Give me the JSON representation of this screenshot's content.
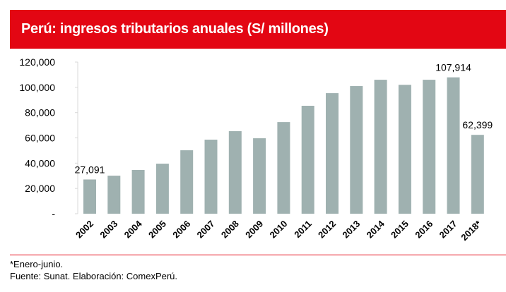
{
  "header": {
    "title": "Perú: ingresos tributarios anuales (S/ millones)"
  },
  "colors": {
    "header": "#e30613",
    "bar": "#9fb1b0"
  },
  "chart_data": {
    "type": "bar",
    "title": "Perú: ingresos tributarios anuales (S/ millones)",
    "categories": [
      "2002",
      "2003",
      "2004",
      "2005",
      "2006",
      "2007",
      "2008",
      "2009",
      "2010",
      "2011",
      "2012",
      "2013",
      "2014",
      "2015",
      "2016",
      "2017",
      "2018*"
    ],
    "values": [
      27091,
      30100,
      34600,
      39600,
      50200,
      58600,
      65300,
      59700,
      72500,
      85400,
      95400,
      101000,
      106000,
      102000,
      106000,
      107914,
      62399
    ],
    "data_labels": {
      "0": "27,091",
      "15": "107,914",
      "16": "62,399"
    },
    "yticks": [
      "-",
      "20,000",
      "40,000",
      "60,000",
      "80,000",
      "100,000",
      "120,000"
    ],
    "ylim": [
      0,
      120000
    ],
    "xlabel": "",
    "ylabel": "",
    "grid": false
  },
  "footer": {
    "note": "*Enero-junio.",
    "source": "Fuente: Sunat. Elaboración: ComexPerú."
  }
}
